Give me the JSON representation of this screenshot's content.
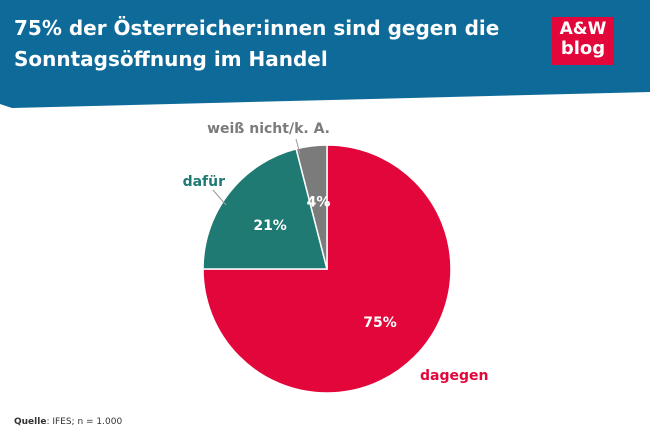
{
  "header": {
    "title_line1": "75% der Österreicher:innen sind gegen die",
    "title_line2": "Sonntagsöffnung im Handel",
    "banner_color": "#0e6a99",
    "logo": {
      "line1": "A&W",
      "line2": "blog",
      "color": "#e3063a"
    }
  },
  "chart_data": {
    "type": "pie",
    "title": "",
    "slices": [
      {
        "label": "dagegen",
        "value": 75,
        "display": "75%",
        "color": "#e3063a"
      },
      {
        "label": "dafür",
        "value": 21,
        "display": "21%",
        "color": "#1e7a73"
      },
      {
        "label": "weiß nicht/k. A.",
        "value": 4,
        "display": "4%",
        "color": "#7b7b7b"
      }
    ]
  },
  "footer": {
    "source_label": "Quelle",
    "source_text": ": IFES; n = 1.000"
  }
}
